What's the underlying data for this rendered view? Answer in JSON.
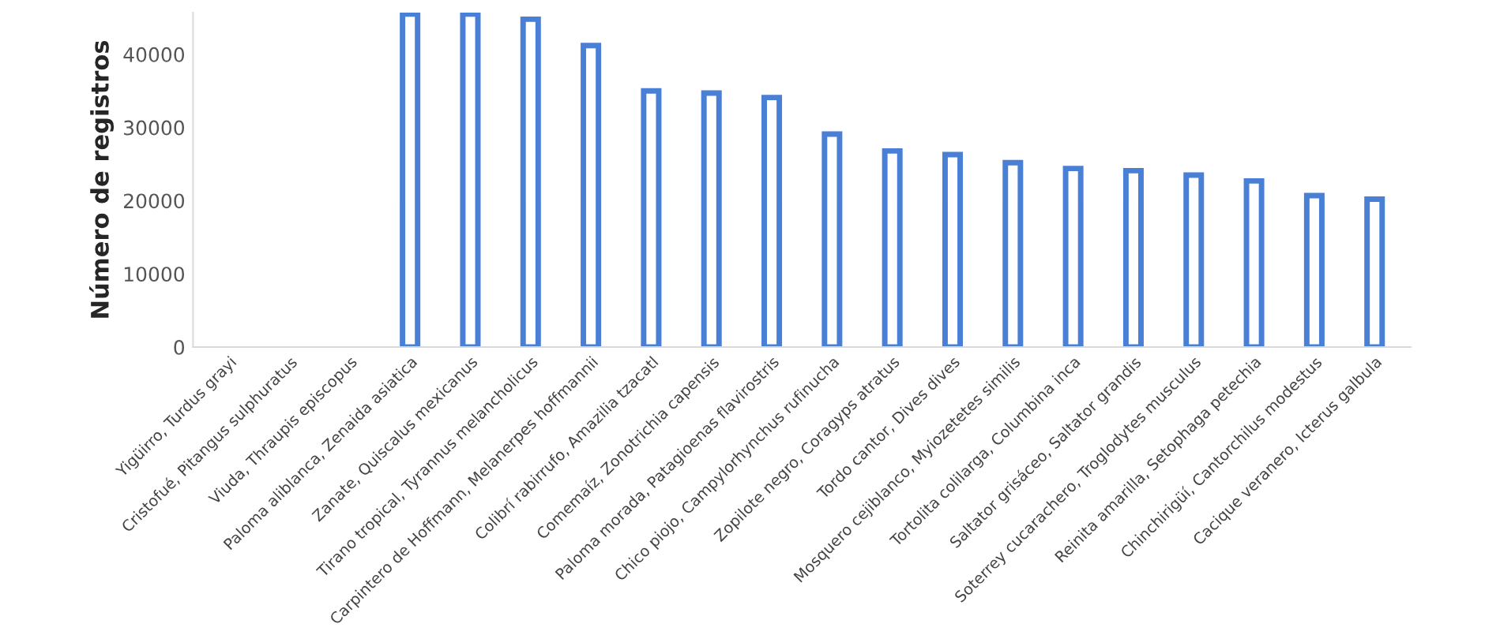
{
  "chart_data": {
    "type": "bar",
    "ylabel": "Número de registros",
    "categories": [
      "Yigüirro, Turdus grayi",
      "Cristofué, Pitangus sulphuratus",
      "Viuda, Thraupis episcopus",
      "Paloma aliblanca, Zenaida asiatica",
      "Zanate, Quiscalus mexicanus",
      "Tirano tropical, Tyrannus melancholicus",
      "Carpintero de Hoffmann, Melanerpes hoffmannii",
      "Colibrí rabirrufo, Amazilia tzacatl",
      "Comemaíz, Zonotrichia capensis",
      "Paloma morada, Patagioenas flavirostris",
      "Chico piojo, Campylorhynchus rufinucha",
      "Zopilote negro, Coragyps atratus",
      "Tordo cantor, Dives dives",
      "Mosquero cejiblanco, Myiozetetes similis",
      "Tortolita colilarga, Columbina inca",
      "Saltator grisáceo, Saltator grandis",
      "Soterrey cucarachero, Troglodytes musculus",
      "Reinita amarilla, Setophaga petechia",
      "Chinchirigüí, Cantorchilus modestus",
      "Cacique veranero, Icterus galbula"
    ],
    "values": [
      null,
      null,
      null,
      45500,
      45500,
      44800,
      41200,
      35000,
      34700,
      34100,
      29100,
      26800,
      26300,
      25200,
      24400,
      24100,
      23500,
      22700,
      20700,
      20200
    ],
    "color": "#4a7fd6",
    "ylim": [
      0,
      45700
    ],
    "yticks": [
      0,
      10000,
      20000,
      30000,
      40000
    ],
    "grid": false
  }
}
